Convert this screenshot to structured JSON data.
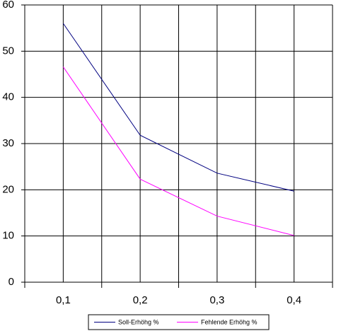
{
  "chart_data": {
    "type": "line",
    "categories": [
      "0,1",
      "0,2",
      "0,3",
      "0,4"
    ],
    "series": [
      {
        "name": "Soll-Erhöhg %",
        "color": "#000080",
        "values": [
          56,
          31.8,
          23.6,
          19.7
        ]
      },
      {
        "name": "Fehlende Erhöhg %",
        "color": "#ff00ff",
        "values": [
          46.6,
          22.3,
          14.3,
          10.1
        ]
      }
    ],
    "ylim": [
      0,
      60
    ],
    "yticks": [
      0,
      10,
      20,
      30,
      40,
      50,
      60
    ],
    "grid": true,
    "legend": "bottom"
  }
}
